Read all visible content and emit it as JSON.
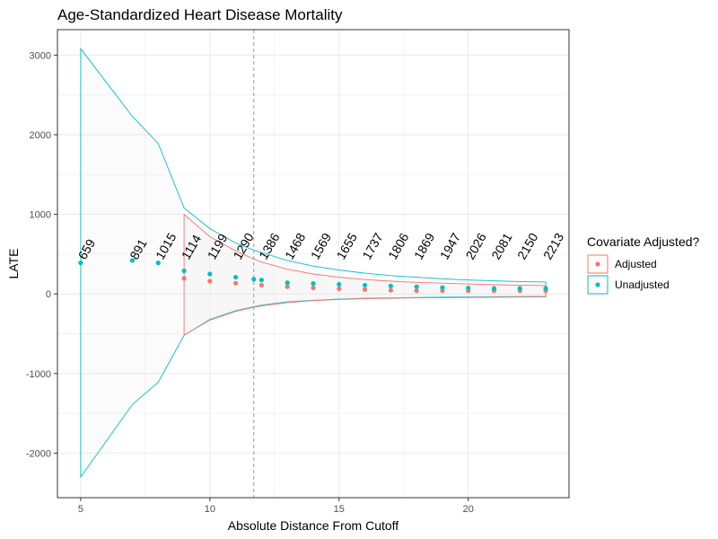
{
  "chart_data": {
    "type": "scatter",
    "title": "Age-Standardized Heart Disease Mortality",
    "xlabel": "Absolute Distance From Cutoff",
    "ylabel": "LATE",
    "xlim": [
      4.1,
      23.9
    ],
    "ylim": [
      -2560,
      3320
    ],
    "xticks": [
      5,
      10,
      15,
      20
    ],
    "yticks": [
      -2000,
      -1000,
      0,
      1000,
      2000,
      3000
    ],
    "grid": true,
    "cutoff_line_x": 11.7,
    "legend": {
      "title": "Covariate Adjusted?",
      "position": "right",
      "entries": [
        {
          "label": "Adjusted",
          "color": "#F8766D"
        },
        {
          "label": "Unadjusted",
          "color": "#00BFC4"
        }
      ]
    },
    "x": [
      5,
      7,
      8,
      9,
      10,
      11,
      11.7,
      12,
      13,
      14,
      15,
      16,
      17,
      18,
      19,
      20,
      21,
      22,
      23
    ],
    "n_labels": [
      "659",
      "891",
      "1015",
      "1114",
      "1199",
      "1290",
      "1386",
      "1468",
      "1569",
      "1655",
      "1737",
      "1806",
      "1869",
      "1947",
      "2026",
      "2081",
      "2150",
      "2213"
    ],
    "n_label_x": [
      5,
      7,
      8,
      9,
      10,
      11,
      12,
      13,
      14,
      15,
      16,
      17,
      18,
      19,
      20,
      21,
      22,
      23
    ],
    "series": [
      {
        "name": "Adjusted",
        "color": "#F8766D",
        "points_x": [
          9,
          10,
          11,
          12,
          13,
          14,
          15,
          16,
          17,
          18,
          19,
          20,
          21,
          22,
          23
        ],
        "points_y": [
          195,
          160,
          135,
          110,
          90,
          75,
          65,
          55,
          45,
          40,
          40,
          40,
          40,
          40,
          40
        ],
        "band_x": [
          9,
          10,
          11,
          11.7,
          12,
          13,
          14,
          15,
          16,
          17,
          18,
          19,
          20,
          21,
          22,
          23
        ],
        "upper": [
          1000,
          720,
          540,
          440,
          400,
          310,
          250,
          210,
          180,
          160,
          145,
          135,
          125,
          115,
          110,
          105
        ],
        "lower": [
          -520,
          -330,
          -220,
          -170,
          -150,
          -110,
          -85,
          -70,
          -60,
          -55,
          -50,
          -48,
          -45,
          -42,
          -40,
          -38
        ]
      },
      {
        "name": "Unadjusted",
        "color": "#00BFC4",
        "points_x": [
          5,
          7,
          8,
          9,
          10,
          11,
          11.7,
          12,
          13,
          14,
          15,
          16,
          17,
          18,
          19,
          20,
          21,
          22,
          23
        ],
        "points_y": [
          390,
          420,
          390,
          290,
          250,
          210,
          185,
          175,
          140,
          130,
          120,
          110,
          100,
          90,
          80,
          75,
          70,
          70,
          70
        ],
        "band_x": [
          5,
          7,
          8,
          9,
          10,
          11,
          11.7,
          12,
          13,
          14,
          15,
          16,
          17,
          18,
          19,
          20,
          21,
          22,
          23
        ],
        "upper": [
          3080,
          2230,
          1890,
          1080,
          820,
          640,
          550,
          520,
          420,
          350,
          300,
          260,
          230,
          210,
          190,
          175,
          165,
          155,
          150
        ],
        "lower": [
          -2300,
          -1390,
          -1110,
          -520,
          -320,
          -210,
          -160,
          -140,
          -100,
          -80,
          -65,
          -55,
          -50,
          -45,
          -40,
          -37,
          -35,
          -33,
          -30
        ]
      }
    ]
  }
}
